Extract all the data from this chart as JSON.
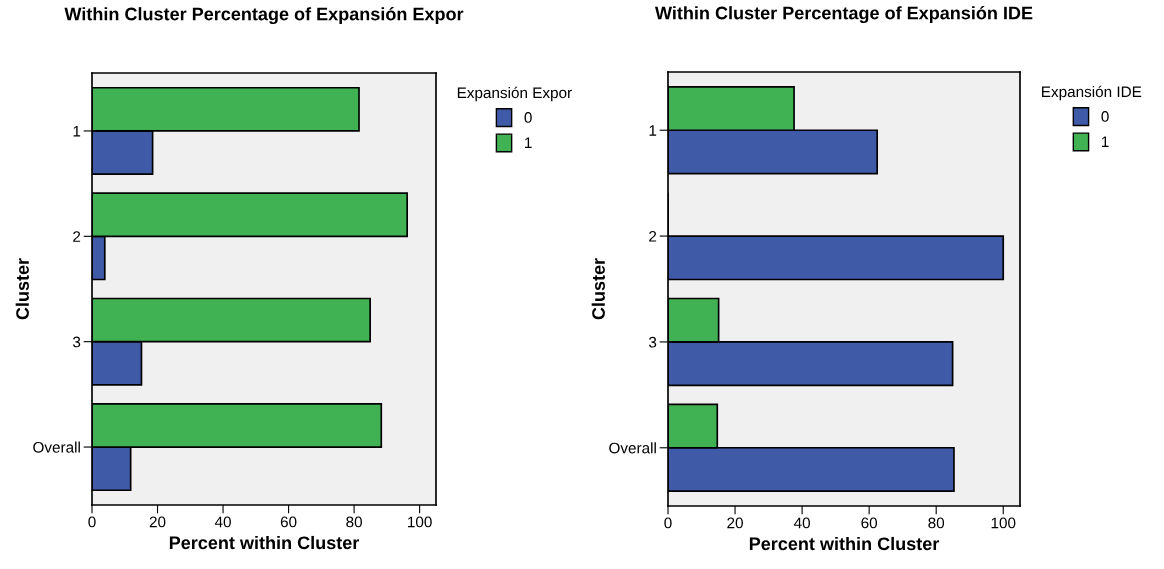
{
  "chart_data": [
    {
      "type": "bar",
      "orientation": "horizontal",
      "title": "Within Cluster Percentage of Expansión Expor",
      "xlabel": "Percent within Cluster",
      "ylabel": "Cluster",
      "legend_title": "Expansión Expor",
      "legend": "top right",
      "grid": false,
      "categories": [
        "1",
        "2",
        "3",
        "Overall"
      ],
      "xlim": [
        0,
        105
      ],
      "xticks": [
        0,
        20,
        40,
        60,
        80,
        100
      ],
      "series": [
        {
          "name": "0",
          "color": "#3f5ba8",
          "values": [
            18.5,
            3.9,
            15.1,
            11.8
          ]
        },
        {
          "name": "1",
          "color": "#41b254",
          "values": [
            81.5,
            96.2,
            84.9,
            88.3
          ]
        }
      ]
    },
    {
      "type": "bar",
      "orientation": "horizontal",
      "title": "Within Cluster Percentage of Expansión IDE",
      "xlabel": "Percent within Cluster",
      "ylabel": "Cluster",
      "legend_title": "Expansión IDE",
      "legend": "top right",
      "grid": false,
      "categories": [
        "1",
        "2",
        "3",
        "Overall"
      ],
      "xlim": [
        0,
        105
      ],
      "xticks": [
        0,
        20,
        40,
        60,
        80,
        100
      ],
      "series": [
        {
          "name": "0",
          "color": "#3f5ba8",
          "values": [
            62.4,
            100,
            84.9,
            85.3
          ]
        },
        {
          "name": "1",
          "color": "#41b254",
          "values": [
            37.6,
            0,
            15.1,
            14.7
          ]
        }
      ]
    }
  ]
}
